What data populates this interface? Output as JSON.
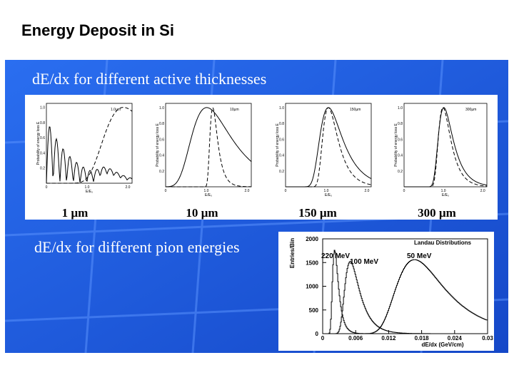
{
  "title": "Energy Deposit in Si",
  "slide": {
    "heading1": "dE/dx for different active thicknesses",
    "thickness_plots": [
      {
        "label": "1 µm",
        "annotation": "1.0µm",
        "y_label": "Probability of energy loss E",
        "x_label": "E/E₀",
        "yticks": [
          "0.2",
          "0.4",
          "0.6",
          "0.8",
          "1.0"
        ],
        "xticks": [
          "0",
          "1.0",
          "2.0"
        ]
      },
      {
        "label": "10 µm",
        "annotation": "10µm",
        "y_label": "Probability of energy loss E",
        "x_label": "E/E₀",
        "yticks": [
          "0.2",
          "0.4",
          "0.6",
          "0.8",
          "1.0"
        ],
        "xticks": [
          "0",
          "1.0",
          "2.0"
        ]
      },
      {
        "label": "150 µm",
        "annotation": "150µm",
        "y_label": "Probability of energy loss E",
        "x_label": "E/E₀",
        "yticks": [
          "0.2",
          "0.4",
          "0.6",
          "0.8",
          "1.0"
        ],
        "xticks": [
          "0",
          "1.0",
          "2.0"
        ]
      },
      {
        "label": "300 µm",
        "annotation": "300µm",
        "y_label": "Probability of energy loss E",
        "x_label": "E/E₀",
        "yticks": [
          "0.2",
          "0.4",
          "0.6",
          "0.8",
          "1.0"
        ],
        "xticks": [
          "0",
          "1.0",
          "2.0"
        ]
      }
    ],
    "heading2": "dE/dx for different pion energies",
    "landau": {
      "title": "Landau Distributions",
      "y_label": "Entries/Bin",
      "x_label": "dE/dx (GeV/cm)",
      "yticks": [
        "0",
        "500",
        "1000",
        "1500",
        "2000"
      ],
      "xticks": [
        "0",
        "0.006",
        "0.012",
        "0.018",
        "0.024",
        "0.03"
      ],
      "curve_labels": [
        "220 MeV",
        "100 MeV",
        "50 MeV"
      ]
    }
  }
}
